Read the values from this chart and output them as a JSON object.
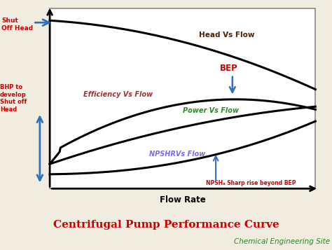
{
  "bg_color": "#f0ece0",
  "plot_bg": "#ffffff",
  "title": "Centrifugal Pump Performance Curve",
  "title_color": "#cc0000",
  "title_fontsize": 11,
  "subtitle": "Chemical Engineering Site",
  "subtitle_color": "#228B22",
  "subtitle_fontsize": 7.5,
  "flow_rate_label": "Flow Rate",
  "curve_color": "#000000",
  "curve_lw": 2.2,
  "head_label": "Head Vs Flow",
  "head_label_color": "#4a2000",
  "efficiency_label": "Efficiency Vs Flow",
  "efficiency_label_color": "#993333",
  "power_label": "Power Vs Flow",
  "power_label_color": "#228B22",
  "npshr_label": "NPSHRVs Flow",
  "npshr_label_color": "#7B68EE",
  "npsha_note": "NPSHₐ Sharp rise beyond BEP",
  "npsha_note_color": "#cc0000",
  "bep_label": "BEP",
  "bep_label_color": "#cc0000",
  "shut_off_head_label": "Shut\nOff Head",
  "shut_off_head_color": "#cc0000",
  "bhp_label": "BHP to\ndevelop\nShut off\nHead",
  "bhp_color": "#cc0000",
  "arrow_color": "#3070c0",
  "border_color": "#888888"
}
